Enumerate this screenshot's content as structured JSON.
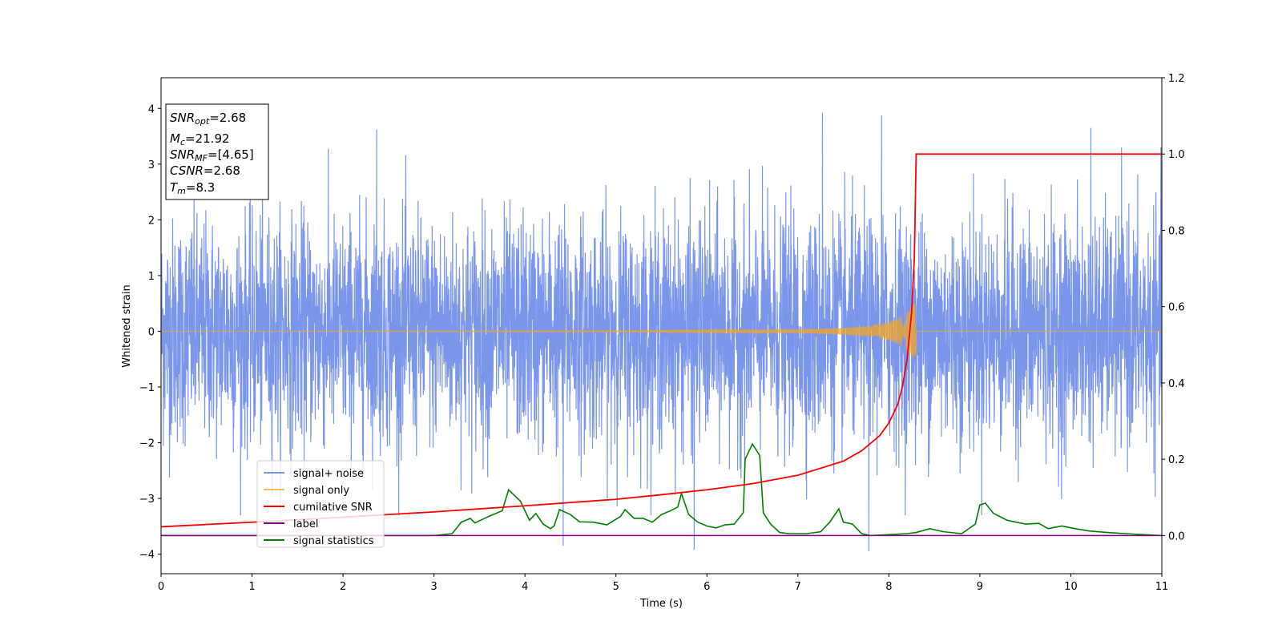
{
  "chart_data": {
    "type": "line",
    "xlabel": "Time (s)",
    "ylabel": "Whitened strain",
    "xlim": [
      0,
      11
    ],
    "ylim": [
      -4.35,
      4.55
    ],
    "y2lim": [
      -0.1,
      1.2
    ],
    "xticks": [
      0,
      1,
      2,
      3,
      4,
      5,
      6,
      7,
      8,
      9,
      10,
      11
    ],
    "yticks": [
      -4,
      -3,
      -2,
      -1,
      0,
      1,
      2,
      3,
      4
    ],
    "y2ticks": [
      0.0,
      0.2,
      0.4,
      0.6,
      0.8,
      1.0,
      1.2
    ],
    "y2tick_labels": [
      "0.0",
      "0.2",
      "0.4",
      "0.6",
      "0.8",
      "1.0",
      "1.2"
    ],
    "grid": false,
    "legend_position": "lower-left",
    "annotation": {
      "snr_opt": {
        "base": "SNR",
        "sub": "opt",
        "value": "=2.68"
      },
      "mc": {
        "base": "M",
        "sub": "c",
        "value": "=21.92"
      },
      "snr_mf": {
        "base": "SNR",
        "sub": "MF",
        "value": "=[4.65]"
      },
      "csnr": {
        "base": "CSNR",
        "value": "=2.68"
      },
      "tm": {
        "base": "T",
        "sub": "m",
        "value": "=8.3"
      }
    },
    "series": [
      {
        "name": "signal+ noise",
        "color": "#4169e1",
        "axis": "left",
        "description_envelope": {
          "typical_amplitude": 1.0,
          "max_peaks": [
            [
              7.27,
              3.92
            ],
            [
              7.92,
              3.87
            ],
            [
              2.37,
              3.62
            ],
            [
              10.22,
              3.65
            ],
            [
              5.86,
              -3.92
            ],
            [
              7.78,
              -3.95
            ],
            [
              4.42,
              -3.85
            ]
          ]
        }
      },
      {
        "name": "signal only",
        "color": "#f5a623",
        "axis": "left",
        "points": [
          [
            0,
            0
          ],
          [
            5.0,
            0.01
          ],
          [
            6.0,
            0.02
          ],
          [
            7.0,
            0.03
          ],
          [
            7.5,
            0.06
          ],
          [
            7.8,
            0.1
          ],
          [
            8.0,
            0.17
          ],
          [
            8.1,
            0.23
          ],
          [
            8.2,
            0.35
          ],
          [
            8.25,
            0.45
          ],
          [
            8.3,
            0.55
          ],
          [
            8.31,
            0
          ],
          [
            11,
            0
          ]
        ]
      },
      {
        "name": "cumilative SNR",
        "color": "#ff0000",
        "axis": "right",
        "points": [
          [
            0,
            0.023
          ],
          [
            1,
            0.035
          ],
          [
            2,
            0.048
          ],
          [
            3,
            0.062
          ],
          [
            4,
            0.078
          ],
          [
            5,
            0.095
          ],
          [
            5.5,
            0.107
          ],
          [
            6,
            0.12
          ],
          [
            6.5,
            0.136
          ],
          [
            7,
            0.158
          ],
          [
            7.5,
            0.195
          ],
          [
            7.7,
            0.222
          ],
          [
            7.9,
            0.262
          ],
          [
            8.0,
            0.295
          ],
          [
            8.1,
            0.345
          ],
          [
            8.15,
            0.392
          ],
          [
            8.2,
            0.462
          ],
          [
            8.25,
            0.585
          ],
          [
            8.28,
            0.73
          ],
          [
            8.3,
            1.0
          ],
          [
            11,
            1.0
          ]
        ]
      },
      {
        "name": "label",
        "color": "#800080",
        "axis": "right",
        "points": [
          [
            0,
            0.0
          ],
          [
            11,
            0.0
          ]
        ]
      },
      {
        "name": "signal statistics",
        "color": "#008000",
        "axis": "right",
        "points": [
          [
            0,
            0.0
          ],
          [
            3.0,
            0.0
          ],
          [
            3.2,
            0.005
          ],
          [
            3.3,
            0.035
          ],
          [
            3.4,
            0.045
          ],
          [
            3.45,
            0.033
          ],
          [
            3.6,
            0.05
          ],
          [
            3.75,
            0.065
          ],
          [
            3.82,
            0.12
          ],
          [
            3.95,
            0.09
          ],
          [
            4.05,
            0.04
          ],
          [
            4.12,
            0.058
          ],
          [
            4.2,
            0.03
          ],
          [
            4.28,
            0.018
          ],
          [
            4.32,
            0.025
          ],
          [
            4.38,
            0.068
          ],
          [
            4.5,
            0.055
          ],
          [
            4.6,
            0.036
          ],
          [
            4.75,
            0.035
          ],
          [
            4.9,
            0.028
          ],
          [
            5.05,
            0.05
          ],
          [
            5.1,
            0.068
          ],
          [
            5.2,
            0.045
          ],
          [
            5.3,
            0.045
          ],
          [
            5.4,
            0.035
          ],
          [
            5.5,
            0.055
          ],
          [
            5.6,
            0.065
          ],
          [
            5.68,
            0.075
          ],
          [
            5.72,
            0.11
          ],
          [
            5.8,
            0.055
          ],
          [
            5.9,
            0.035
          ],
          [
            6.0,
            0.025
          ],
          [
            6.1,
            0.02
          ],
          [
            6.2,
            0.028
          ],
          [
            6.3,
            0.03
          ],
          [
            6.4,
            0.06
          ],
          [
            6.42,
            0.2
          ],
          [
            6.5,
            0.24
          ],
          [
            6.58,
            0.21
          ],
          [
            6.62,
            0.06
          ],
          [
            6.7,
            0.03
          ],
          [
            6.8,
            0.008
          ],
          [
            6.9,
            0.005
          ],
          [
            7.1,
            0.005
          ],
          [
            7.25,
            0.01
          ],
          [
            7.35,
            0.035
          ],
          [
            7.45,
            0.07
          ],
          [
            7.5,
            0.035
          ],
          [
            7.6,
            0.03
          ],
          [
            7.7,
            0.005
          ],
          [
            7.8,
            0.0
          ],
          [
            8.2,
            0.005
          ],
          [
            8.3,
            0.008
          ],
          [
            8.45,
            0.018
          ],
          [
            8.6,
            0.01
          ],
          [
            8.8,
            0.005
          ],
          [
            8.95,
            0.03
          ],
          [
            9.0,
            0.08
          ],
          [
            9.06,
            0.085
          ],
          [
            9.15,
            0.058
          ],
          [
            9.3,
            0.04
          ],
          [
            9.5,
            0.03
          ],
          [
            9.65,
            0.032
          ],
          [
            9.75,
            0.018
          ],
          [
            9.9,
            0.025
          ],
          [
            10.05,
            0.018
          ],
          [
            10.2,
            0.012
          ],
          [
            10.4,
            0.008
          ],
          [
            10.6,
            0.005
          ],
          [
            11,
            0.0
          ]
        ]
      }
    ]
  }
}
